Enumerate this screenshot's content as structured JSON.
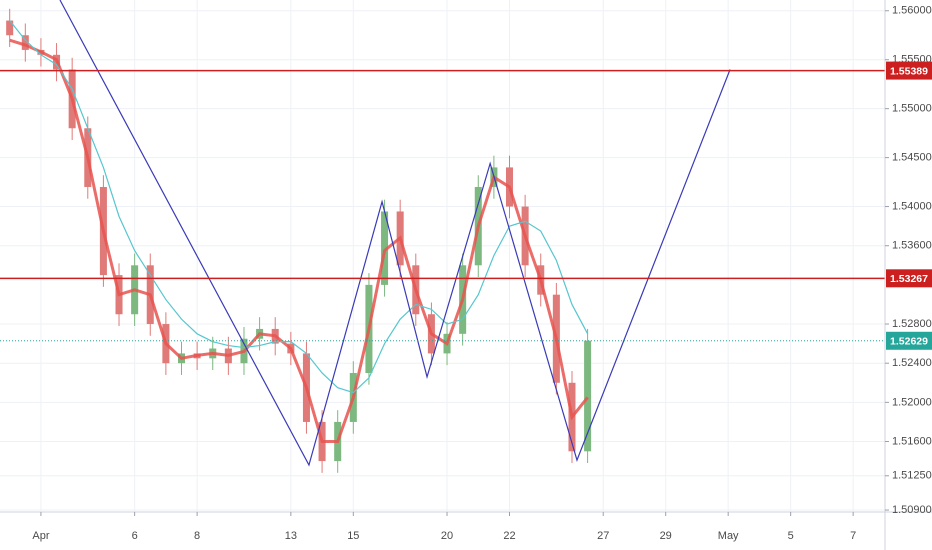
{
  "chart_data": {
    "type": "candlestick",
    "x": [
      -1.0,
      -0.5,
      0,
      0.5,
      1.0,
      1.5,
      2.0,
      2.5,
      3.0,
      3.5,
      4.0,
      4.5,
      5.0,
      5.5,
      6.0,
      6.5,
      7.0,
      7.5,
      8.0,
      8.5,
      9.0,
      9.5,
      10.0,
      10.5,
      11.0,
      11.5,
      12.0,
      12.5,
      13.0,
      13.5,
      14.0,
      14.5,
      15.0,
      15.5,
      16.0,
      16.5,
      17.0,
      17.5
    ],
    "open": [
      1.559,
      1.5575,
      1.556,
      1.5555,
      1.554,
      1.548,
      1.542,
      1.533,
      1.529,
      1.534,
      1.528,
      1.524,
      1.525,
      1.5245,
      1.5255,
      1.524,
      1.5265,
      1.5275,
      1.526,
      1.525,
      1.518,
      1.514,
      1.518,
      1.523,
      1.532,
      1.5395,
      1.534,
      1.529,
      1.525,
      1.527,
      1.534,
      1.542,
      1.544,
      1.54,
      1.534,
      1.531,
      1.522,
      1.515
    ],
    "high": [
      1.5602,
      1.5587,
      1.5572,
      1.5567,
      1.5552,
      1.5492,
      1.5432,
      1.5342,
      1.5352,
      1.5352,
      1.5292,
      1.5262,
      1.5262,
      1.5267,
      1.5267,
      1.5277,
      1.5287,
      1.5287,
      1.5272,
      1.5262,
      1.5192,
      1.5192,
      1.5242,
      1.5332,
      1.5407,
      1.5407,
      1.5352,
      1.5302,
      1.5282,
      1.5352,
      1.5432,
      1.5452,
      1.5452,
      1.5412,
      1.5352,
      1.5322,
      1.5232,
      1.5275
    ],
    "low": [
      1.5563,
      1.5548,
      1.5543,
      1.5528,
      1.5468,
      1.5408,
      1.5318,
      1.5278,
      1.5278,
      1.5268,
      1.5228,
      1.5228,
      1.5233,
      1.5233,
      1.5228,
      1.5228,
      1.5253,
      1.5248,
      1.5238,
      1.5168,
      1.5128,
      1.5128,
      1.5168,
      1.5218,
      1.5308,
      1.5328,
      1.5278,
      1.5238,
      1.5238,
      1.5258,
      1.5328,
      1.5408,
      1.5388,
      1.5328,
      1.5298,
      1.5208,
      1.5138,
      1.5138
    ],
    "close": [
      1.5575,
      1.556,
      1.5555,
      1.554,
      1.548,
      1.542,
      1.533,
      1.529,
      1.534,
      1.528,
      1.524,
      1.525,
      1.5245,
      1.5255,
      1.524,
      1.5265,
      1.5275,
      1.526,
      1.525,
      1.518,
      1.514,
      1.518,
      1.523,
      1.532,
      1.5395,
      1.534,
      1.529,
      1.525,
      1.527,
      1.534,
      1.542,
      1.544,
      1.54,
      1.534,
      1.531,
      1.522,
      1.515,
      1.5263
    ],
    "up_color": "#7cb87f",
    "down_color": "#e07a78",
    "series": [
      {
        "color": "#e8534f",
        "values": [
          1.557,
          1.5565,
          1.5558,
          1.555,
          1.551,
          1.545,
          1.5375,
          1.531,
          1.5315,
          1.531,
          1.526,
          1.5245,
          1.5248,
          1.525,
          1.5248,
          1.5252,
          1.527,
          1.5268,
          1.5255,
          1.5215,
          1.516,
          1.516,
          1.5205,
          1.5275,
          1.5355,
          1.5368,
          1.5315,
          1.527,
          1.526,
          1.5305,
          1.538,
          1.543,
          1.542,
          1.537,
          1.5325,
          1.5265,
          1.5185,
          1.5205
        ]
      },
      {
        "color": "#56c6cf",
        "values": [
          1.559,
          1.557,
          1.5555,
          1.5545,
          1.552,
          1.548,
          1.544,
          1.539,
          1.5355,
          1.533,
          1.5305,
          1.5285,
          1.527,
          1.5262,
          1.5258,
          1.5256,
          1.5258,
          1.5262,
          1.5262,
          1.525,
          1.523,
          1.5215,
          1.521,
          1.5225,
          1.526,
          1.5285,
          1.53,
          1.5295,
          1.528,
          1.5285,
          1.531,
          1.535,
          1.538,
          1.5385,
          1.5375,
          1.5345,
          1.53,
          1.527
        ]
      }
    ],
    "pattern_line": {
      "color": "#3a3ab8",
      "x": [
        0.61,
        8.58,
        10.92,
        12.36,
        14.38,
        17.16,
        22.06
      ],
      "values": [
        1.5611,
        1.5136,
        1.5405,
        1.5226,
        1.5444,
        1.5141,
        1.554
      ]
    },
    "hlines": [
      {
        "value": 1.55389,
        "color": "#cc1f1f"
      },
      {
        "value": 1.53267,
        "color": "#cc1f1f"
      }
    ],
    "last_price": {
      "value": 1.52629,
      "color": "#26a69a"
    },
    "xlim": [
      -1.31,
      27.02
    ],
    "ylim": [
      1.5088,
      1.5611
    ],
    "xticks": [
      {
        "value": 0,
        "label": "Apr"
      },
      {
        "value": 3,
        "label": "6"
      },
      {
        "value": 5,
        "label": "8"
      },
      {
        "value": 8,
        "label": "13"
      },
      {
        "value": 10,
        "label": "15"
      },
      {
        "value": 13,
        "label": "20"
      },
      {
        "value": 15,
        "label": "22"
      },
      {
        "value": 18,
        "label": "27"
      },
      {
        "value": 20,
        "label": "29"
      },
      {
        "value": 22,
        "label": "May"
      },
      {
        "value": 24,
        "label": "5"
      },
      {
        "value": 26,
        "label": "7"
      }
    ],
    "yticks": [
      {
        "value": 1.56,
        "label": "1.56000"
      },
      {
        "value": 1.555,
        "label": "1.55500"
      },
      {
        "value": 1.55,
        "label": "1.55000"
      },
      {
        "value": 1.545,
        "label": "1.54500"
      },
      {
        "value": 1.54,
        "label": "1.54000"
      },
      {
        "value": 1.536,
        "label": "1.53600"
      },
      {
        "value": 1.528,
        "label": "1.52800"
      },
      {
        "value": 1.524,
        "label": "1.52400"
      },
      {
        "value": 1.52,
        "label": "1.52000"
      },
      {
        "value": 1.516,
        "label": "1.51600"
      },
      {
        "value": 1.5125,
        "label": "1.51250"
      },
      {
        "value": 1.509,
        "label": "1.50900"
      }
    ],
    "grid": true
  }
}
